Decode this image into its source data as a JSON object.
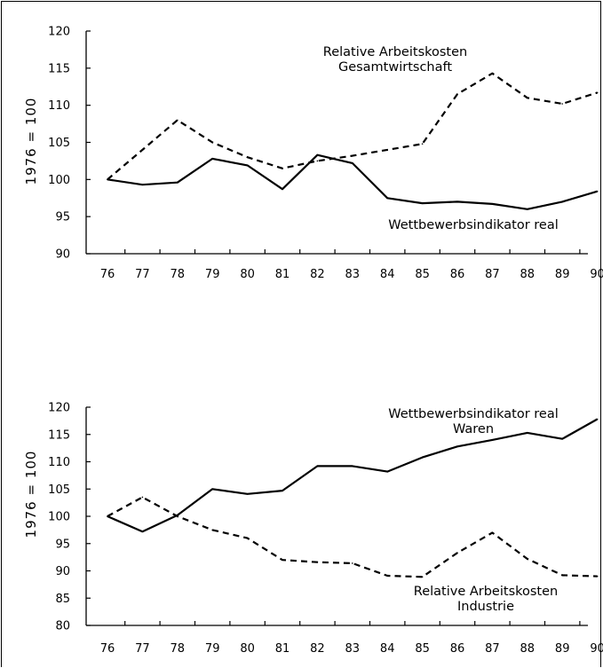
{
  "chart_data": [
    {
      "type": "line",
      "categories": [
        "76",
        "77",
        "78",
        "79",
        "80",
        "81",
        "82",
        "83",
        "84",
        "85",
        "86",
        "87",
        "88",
        "89",
        "90"
      ],
      "ylabel": "1976 = 100",
      "ylim": [
        90,
        120
      ],
      "yticks": [
        90,
        95,
        100,
        105,
        110,
        115,
        120
      ],
      "grid": false,
      "series": [
        {
          "name": "Relative Arbeitskosten Gesamtwirtschaft",
          "style": "dashed",
          "values": [
            100.0,
            104.0,
            108.0,
            105.0,
            103.0,
            101.5,
            102.5,
            103.2,
            104.0,
            104.8,
            111.5,
            114.3,
            111.0,
            110.2,
            111.7
          ]
        },
        {
          "name": "Wettbewerbsindikator real",
          "style": "solid",
          "values": [
            100.0,
            99.3,
            99.6,
            102.8,
            101.9,
            98.7,
            103.3,
            102.2,
            97.5,
            96.8,
            97.0,
            96.7,
            96.0,
            97.0,
            98.4
          ]
        }
      ],
      "annotations": [
        {
          "id": "ann_a1",
          "lines": [
            "Relative Arbeitskosten",
            "Gesamtwirtschaft"
          ]
        },
        {
          "id": "ann_a2",
          "lines": [
            "Wettbewerbsindikator real"
          ]
        }
      ]
    },
    {
      "type": "line",
      "categories": [
        "76",
        "77",
        "78",
        "79",
        "80",
        "81",
        "82",
        "83",
        "84",
        "85",
        "86",
        "87",
        "88",
        "89",
        "90"
      ],
      "ylabel": "1976 = 100",
      "ylim": [
        80,
        120
      ],
      "yticks": [
        80,
        85,
        90,
        95,
        100,
        105,
        110,
        115,
        120
      ],
      "grid": false,
      "series": [
        {
          "name": "Wettbewerbsindikator real Waren",
          "style": "solid",
          "values": [
            100.0,
            97.2,
            100.2,
            105.0,
            104.1,
            104.7,
            109.2,
            109.2,
            108.2,
            110.8,
            112.8,
            114.0,
            115.3,
            114.2,
            117.8
          ]
        },
        {
          "name": "Relative Arbeitskosten Industrie",
          "style": "dashed",
          "values": [
            100.0,
            103.5,
            100.0,
            97.5,
            96.0,
            92.0,
            91.6,
            91.4,
            89.1,
            88.9,
            93.3,
            97.0,
            92.2,
            89.2,
            89.0
          ]
        }
      ],
      "annotations": [
        {
          "id": "ann_b1",
          "lines": [
            "Wettbewerbsindikator real",
            "Waren"
          ]
        },
        {
          "id": "ann_b2",
          "lines": [
            "Relative Arbeitskosten",
            "Industrie"
          ]
        }
      ]
    }
  ]
}
